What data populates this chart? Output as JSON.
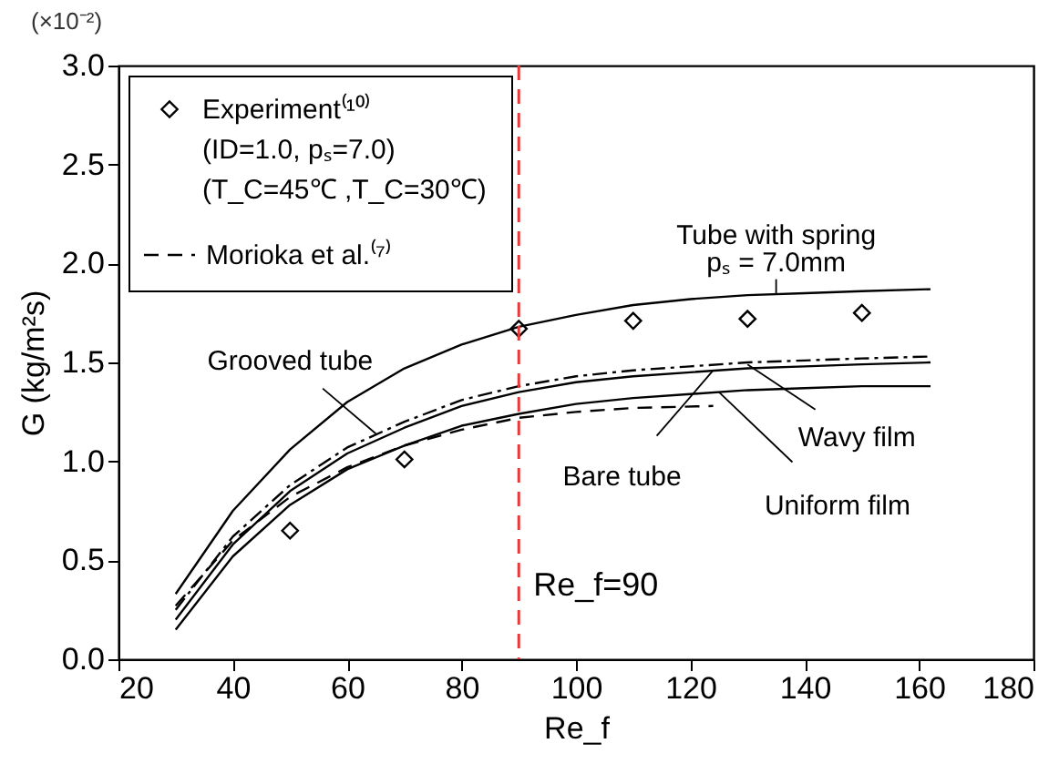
{
  "chart_data": {
    "type": "line",
    "xlabel": "Re_f",
    "ylabel": "G (kg/m²s)",
    "xlim": [
      20,
      180
    ],
    "xticks": [
      20,
      40,
      60,
      80,
      100,
      120,
      140,
      160,
      180
    ],
    "ylim": [
      0,
      3.0
    ],
    "yticks": [
      {
        "value": 0,
        "label": "0.0"
      },
      {
        "value": 0.5,
        "label": "0.5"
      },
      {
        "value": 1,
        "label": "1.0"
      },
      {
        "value": 1.5,
        "label": "1.5"
      },
      {
        "value": 2,
        "label": "2.0"
      },
      {
        "value": 2.5,
        "label": "2.5"
      },
      {
        "value": 3,
        "label": "3.0"
      }
    ],
    "grid": false,
    "legend": "top left",
    "series": [
      {
        "name": "Experiment⁽¹⁰⁾",
        "type": "scatter",
        "marker": "diamond",
        "color": "#000000",
        "x": [
          50,
          70,
          90,
          110,
          130,
          150
        ],
        "values": [
          0.65,
          1.01,
          1.67,
          1.71,
          1.72,
          1.75
        ]
      },
      {
        "type": "line",
        "line_style": "solid",
        "color": "#000000",
        "x": [
          30,
          40,
          50,
          60,
          70,
          80,
          90,
          100,
          110,
          120,
          130,
          140,
          150,
          162
        ],
        "values": [
          0.33,
          0.75,
          1.06,
          1.3,
          1.47,
          1.59,
          1.68,
          1.74,
          1.79,
          1.82,
          1.84,
          1.85,
          1.86,
          1.87
        ]
      },
      {
        "type": "line",
        "line_style": "dashdot",
        "color": "#000000",
        "x": [
          30,
          40,
          50,
          60,
          70,
          80,
          90,
          100,
          110,
          120,
          130,
          140,
          150,
          162
        ],
        "values": [
          0.25,
          0.62,
          0.88,
          1.07,
          1.2,
          1.31,
          1.38,
          1.43,
          1.46,
          1.48,
          1.5,
          1.51,
          1.52,
          1.53
        ]
      },
      {
        "type": "line",
        "line_style": "solid",
        "color": "#000000",
        "x": [
          30,
          40,
          50,
          60,
          70,
          80,
          90,
          100,
          110,
          120,
          130,
          140,
          150,
          162
        ],
        "values": [
          0.2,
          0.58,
          0.85,
          1.04,
          1.17,
          1.28,
          1.35,
          1.4,
          1.43,
          1.45,
          1.47,
          1.48,
          1.49,
          1.5
        ]
      },
      {
        "type": "line",
        "line_style": "solid",
        "color": "#000000",
        "x": [
          30,
          40,
          50,
          60,
          70,
          80,
          90,
          100,
          110,
          120,
          130,
          140,
          150,
          162
        ],
        "values": [
          0.15,
          0.52,
          0.78,
          0.96,
          1.08,
          1.18,
          1.24,
          1.29,
          1.32,
          1.34,
          1.36,
          1.37,
          1.38,
          1.38
        ]
      },
      {
        "name": "Morioka et al.⁽⁷⁾",
        "type": "line",
        "line_style": "dashed",
        "color": "#000000",
        "x": [
          30,
          40,
          50,
          60,
          70,
          80,
          90,
          100,
          110,
          124
        ],
        "values": [
          0.27,
          0.6,
          0.82,
          0.97,
          1.08,
          1.16,
          1.22,
          1.25,
          1.27,
          1.28
        ]
      }
    ],
    "ref_lines": [
      {
        "axis": "x",
        "value": 90,
        "label": "Re_f=90",
        "color": "#e8393a",
        "line_style": "dashed"
      }
    ],
    "annotations": [
      "(×10⁻²)",
      "(ID=1.0, pₛ=7.0)",
      "(T_C=45℃ ,T_C=30℃)",
      {
        "text": "Tube with spring",
        "x": 135,
        "y": 1.85
      },
      {
        "text": "pₛ = 7.0mm",
        "x": 135,
        "y": 1.85
      },
      {
        "text": "Grooved tube",
        "x": 65,
        "y": 1.14
      },
      {
        "text": "Bare tube",
        "x": 124,
        "y": 1.46
      },
      {
        "text": "Wavy film",
        "x": 130,
        "y": 1.49
      },
      {
        "text": "Uniform film",
        "x": 125,
        "y": 1.35
      }
    ]
  }
}
